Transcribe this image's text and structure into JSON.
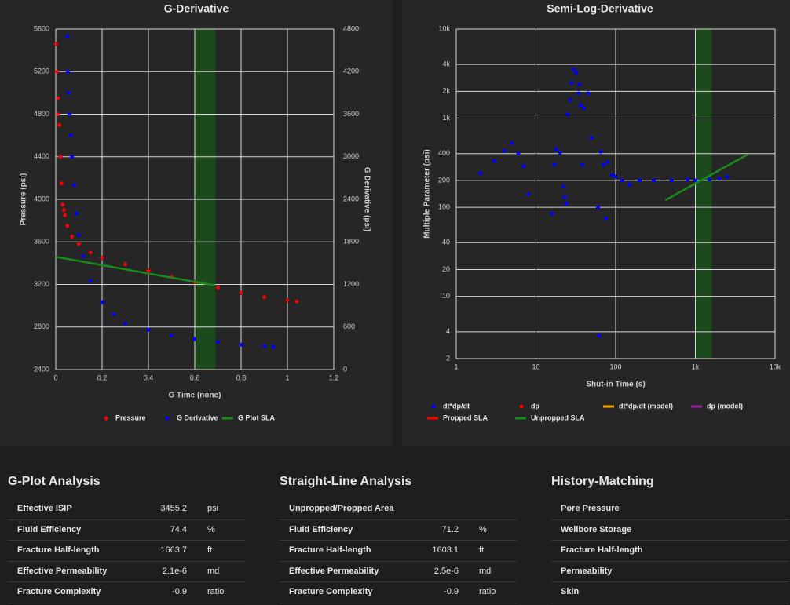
{
  "chart_data": [
    {
      "type": "scatter",
      "title": "G-Derivative",
      "x_label": "G Time (none)",
      "y_label": "Pressure (psi)",
      "y2_label": "G Derivative (psi)",
      "xlim": [
        0,
        1.2
      ],
      "xticks": [
        0,
        0.2,
        0.4,
        0.6,
        0.8,
        1,
        1.2
      ],
      "ylim": [
        2400,
        5600
      ],
      "yticks": [
        2400,
        2800,
        3200,
        3600,
        4000,
        4400,
        4800,
        5200,
        5600
      ],
      "y2lim": [
        0,
        4800
      ],
      "y2ticks": [
        0,
        600,
        1200,
        1800,
        2400,
        3000,
        3600,
        4200,
        4800
      ],
      "grid": true,
      "highlight_x": [
        0.6,
        0.69
      ],
      "highlight_color": "#1c4a1c",
      "series": [
        {
          "name": "Pressure",
          "color": "#ff0000",
          "marker": "diamond",
          "x": [
            0,
            0.005,
            0.01,
            0.01,
            0.015,
            0.02,
            0.025,
            0.03,
            0.035,
            0.04,
            0.05,
            0.07,
            0.1,
            0.15,
            0.2,
            0.3,
            0.4,
            0.5,
            0.6,
            0.7,
            0.8,
            0.9,
            1,
            1.04
          ],
          "values": [
            5460,
            5200,
            4950,
            4800,
            4700,
            4400,
            4150,
            3950,
            3900,
            3850,
            3750,
            3650,
            3580,
            3500,
            3450,
            3390,
            3330,
            3270,
            3220,
            3170,
            3120,
            3080,
            3050,
            3040
          ]
        },
        {
          "name": "G Derivative",
          "color": "#0000ff",
          "marker": "circle",
          "axis": "y2",
          "x": [
            0.05,
            0.052,
            0.055,
            0.06,
            0.065,
            0.07,
            0.08,
            0.09,
            0.1,
            0.12,
            0.15,
            0.2,
            0.25,
            0.3,
            0.4,
            0.5,
            0.6,
            0.7,
            0.8,
            0.9,
            0.94
          ],
          "values": [
            4700,
            4200,
            3900,
            3600,
            3300,
            3000,
            2600,
            2200,
            1900,
            1600,
            1250,
            950,
            780,
            650,
            560,
            480,
            430,
            390,
            350,
            330,
            320
          ]
        },
        {
          "name": "G Plot SLA",
          "color": "#1a8a1a",
          "marker": "line",
          "x": [
            0,
            0.69
          ],
          "values": [
            3460,
            3190
          ]
        }
      ]
    },
    {
      "type": "scatter",
      "title": "Semi-Log-Derivative",
      "x_label": "Shut-in Time (s)",
      "y_label": "Multiple Parameter (psi)",
      "x_scale": "log",
      "y_scale": "log",
      "xlim": [
        1,
        10000
      ],
      "xticks": [
        1,
        10,
        100,
        {
          "value": 1000,
          "label": "1k"
        },
        {
          "value": 10000,
          "label": "10k"
        }
      ],
      "ylim": [
        2,
        10000
      ],
      "yticks": [
        2,
        4,
        10,
        20,
        40,
        100,
        200,
        400,
        {
          "value": 1000,
          "label": "1k"
        },
        {
          "value": 2000,
          "label": "2k"
        },
        {
          "value": 4000,
          "label": "4k"
        },
        {
          "value": 10000,
          "label": "10k"
        }
      ],
      "grid": true,
      "highlight_x": [
        1000,
        1600
      ],
      "highlight_color": "#1c4a1c",
      "series": [
        {
          "name": "dt*dp/dt",
          "color": "#0000ff",
          "marker": "circle",
          "x": [
            2,
            3,
            4,
            5,
            6,
            7,
            8,
            16,
            17,
            18,
            20,
            22,
            23,
            24,
            25,
            27,
            28,
            30,
            32,
            34,
            35,
            36,
            38,
            40,
            45,
            50,
            60,
            62,
            65,
            70,
            75,
            80,
            90,
            100,
            120,
            150,
            200,
            300,
            500,
            800,
            1000,
            1500,
            2000,
            2500
          ],
          "values": [
            240,
            330,
            430,
            520,
            400,
            290,
            140,
            85,
            300,
            450,
            410,
            170,
            130,
            110,
            1100,
            1600,
            2500,
            3500,
            3200,
            1900,
            2400,
            1400,
            300,
            1300,
            1900,
            600,
            100,
            3.6,
            420,
            300,
            75,
            320,
            230,
            220,
            200,
            180,
            200,
            200,
            200,
            205,
            200,
            205,
            210,
            220
          ]
        },
        {
          "name": "dp",
          "color": "#ff0000",
          "marker": "diamond",
          "x": [],
          "values": []
        },
        {
          "name": "dt*dp/dt (model)",
          "color": "#ffa500",
          "marker": "line",
          "x": [],
          "values": []
        },
        {
          "name": "dp (model)",
          "color": "#a020a0",
          "marker": "line",
          "x": [],
          "values": []
        },
        {
          "name": "Propped SLA",
          "color": "#ff0000",
          "marker": "line",
          "x": [],
          "values": []
        },
        {
          "name": "Unpropped SLA",
          "color": "#1a8a1a",
          "marker": "line",
          "x": [
            420,
            4500
          ],
          "values": [
            120,
            390
          ]
        }
      ]
    }
  ],
  "tables": [
    {
      "title": "G-Plot Analysis",
      "rows": [
        [
          "Effective ISIP",
          "3455.2",
          "psi"
        ],
        [
          "Fluid Efficiency",
          "74.4",
          "%"
        ],
        [
          "Fracture Half-length",
          "1663.7",
          "ft"
        ],
        [
          "Effective Permeability",
          "2.1e-6",
          "md"
        ],
        [
          "Fracture Complexity",
          "-0.9",
          "ratio"
        ]
      ]
    },
    {
      "title": "Straight-Line Analysis",
      "rows": [
        [
          "Unpropped/Propped Area"
        ],
        [
          "Fluid Efficiency",
          "71.2",
          "%"
        ],
        [
          "Fracture Half-length",
          "1603.1",
          "ft"
        ],
        [
          "Effective Permeability",
          "2.5e-6",
          "md"
        ],
        [
          "Fracture Complexity",
          "-0.9",
          "ratio"
        ]
      ]
    },
    {
      "title": "History-Matching",
      "rows": [
        [
          "Pore Pressure"
        ],
        [
          "Wellbore Storage"
        ],
        [
          "Fracture Half-length"
        ],
        [
          "Permeability"
        ],
        [
          "Skin"
        ]
      ]
    }
  ]
}
